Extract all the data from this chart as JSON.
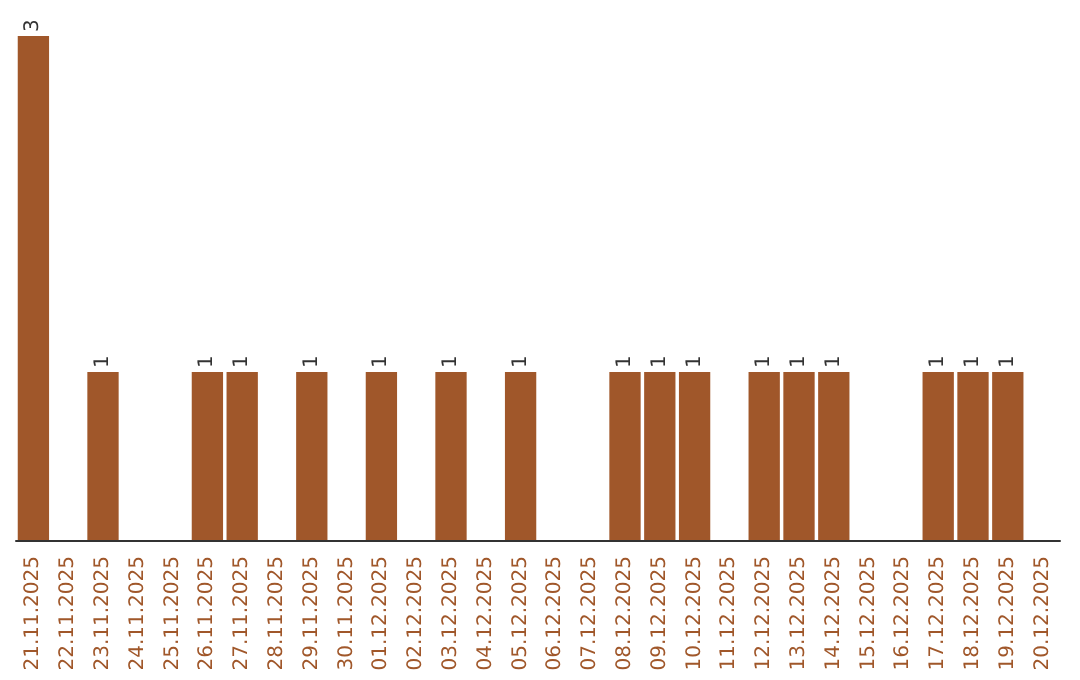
{
  "chart_data": {
    "type": "bar",
    "categories": [
      "21.11.2025",
      "22.11.2025",
      "23.11.2025",
      "24.11.2025",
      "25.11.2025",
      "26.11.2025",
      "27.11.2025",
      "28.11.2025",
      "29.11.2025",
      "30.11.2025",
      "01.12.2025",
      "02.12.2025",
      "03.12.2025",
      "04.12.2025",
      "05.12.2025",
      "06.12.2025",
      "07.12.2025",
      "08.12.2025",
      "09.12.2025",
      "10.12.2025",
      "11.12.2025",
      "12.12.2025",
      "13.12.2025",
      "14.12.2025",
      "15.12.2025",
      "16.12.2025",
      "17.12.2025",
      "18.12.2025",
      "19.12.2025",
      "20.12.2025"
    ],
    "values": [
      3,
      0,
      1,
      0,
      0,
      1,
      1,
      0,
      1,
      0,
      1,
      0,
      1,
      0,
      1,
      0,
      0,
      1,
      1,
      1,
      0,
      1,
      1,
      1,
      0,
      0,
      1,
      1,
      1,
      0
    ],
    "value_labels": [
      "3",
      null,
      "1",
      null,
      null,
      "1",
      "1",
      null,
      "1",
      null,
      "1",
      null,
      "1",
      null,
      "1",
      null,
      null,
      "1",
      "1",
      "1",
      null,
      "1",
      "1",
      "1",
      null,
      null,
      "1",
      "1",
      "1",
      null
    ],
    "color": "#a0572a",
    "grid": false
  }
}
